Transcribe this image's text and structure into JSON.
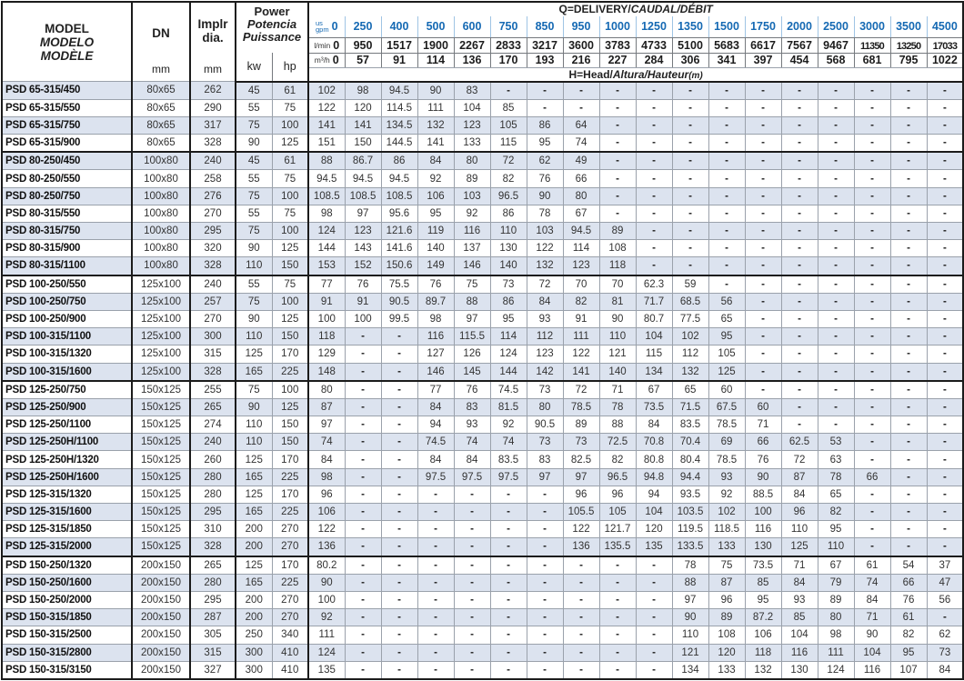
{
  "header": {
    "model": {
      "line1": "MODEL",
      "line2": "MODELO",
      "line3": "MODÈLE"
    },
    "dn": {
      "label": "DN",
      "unit": "mm"
    },
    "impeller": {
      "line1": "Implr",
      "line2": "dia.",
      "unit": "mm"
    },
    "power": {
      "line1": "Power",
      "line2": "Potencia",
      "line3": "Puissance",
      "kw": "kw",
      "hp": "hp"
    },
    "q_title": {
      "part1": "Q=DELIVERY/",
      "part2": "CAUDAL/DÉBIT"
    },
    "head_title": {
      "part1": "H=Head/",
      "part2": "Altura/Hauteur",
      "part3": "(m)"
    },
    "flow": {
      "gpm_label_top": "us",
      "gpm_label_bottom": "gpm",
      "lmin_label": "l/min",
      "m3h_label": "m³/h",
      "gpm": [
        "0",
        "250",
        "400",
        "500",
        "600",
        "750",
        "850",
        "950",
        "1000",
        "1250",
        "1350",
        "1500",
        "1750",
        "2000",
        "2500",
        "3000",
        "3500",
        "4500"
      ],
      "lmin": [
        "0",
        "950",
        "1517",
        "1900",
        "2267",
        "2833",
        "3217",
        "3600",
        "3783",
        "4733",
        "5100",
        "5683",
        "6617",
        "7567",
        "9467",
        "11350",
        "13250",
        "17033"
      ],
      "m3h": [
        "0",
        "57",
        "91",
        "114",
        "136",
        "170",
        "193",
        "216",
        "227",
        "284",
        "306",
        "341",
        "397",
        "454",
        "568",
        "681",
        "795",
        "1022"
      ]
    }
  },
  "colors": {
    "accent_blue": "#1569b3",
    "alt_row": "#dce3ef"
  },
  "rows": [
    {
      "model": "PSD 65-315/450",
      "dn": "80x65",
      "dia": "262",
      "kw": "45",
      "hp": "61",
      "h": [
        "102",
        "98",
        "94.5",
        "90",
        "83",
        "-",
        "-",
        "-",
        "-",
        "-",
        "-",
        "-",
        "-",
        "-",
        "-",
        "-",
        "-",
        "-"
      ]
    },
    {
      "model": "PSD 65-315/550",
      "dn": "80x65",
      "dia": "290",
      "kw": "55",
      "hp": "75",
      "h": [
        "122",
        "120",
        "114.5",
        "111",
        "104",
        "85",
        "-",
        "-",
        "-",
        "-",
        "-",
        "-",
        "-",
        "-",
        "-",
        "-",
        "-",
        "-"
      ]
    },
    {
      "model": "PSD 65-315/750",
      "dn": "80x65",
      "dia": "317",
      "kw": "75",
      "hp": "100",
      "h": [
        "141",
        "141",
        "134.5",
        "132",
        "123",
        "105",
        "86",
        "64",
        "-",
        "-",
        "-",
        "-",
        "-",
        "-",
        "-",
        "-",
        "-",
        "-"
      ]
    },
    {
      "model": "PSD 65-315/900",
      "dn": "80x65",
      "dia": "328",
      "kw": "90",
      "hp": "125",
      "h": [
        "151",
        "150",
        "144.5",
        "141",
        "133",
        "115",
        "95",
        "74",
        "-",
        "-",
        "-",
        "-",
        "-",
        "-",
        "-",
        "-",
        "-",
        "-"
      ]
    },
    {
      "model": "PSD 80-250/450",
      "dn": "100x80",
      "dia": "240",
      "kw": "45",
      "hp": "61",
      "h": [
        "88",
        "86.7",
        "86",
        "84",
        "80",
        "72",
        "62",
        "49",
        "-",
        "-",
        "-",
        "-",
        "-",
        "-",
        "-",
        "-",
        "-",
        "-"
      ]
    },
    {
      "model": "PSD 80-250/550",
      "dn": "100x80",
      "dia": "258",
      "kw": "55",
      "hp": "75",
      "h": [
        "94.5",
        "94.5",
        "94.5",
        "92",
        "89",
        "82",
        "76",
        "66",
        "-",
        "-",
        "-",
        "-",
        "-",
        "-",
        "-",
        "-",
        "-",
        "-"
      ]
    },
    {
      "model": "PSD 80-250/750",
      "dn": "100x80",
      "dia": "276",
      "kw": "75",
      "hp": "100",
      "h": [
        "108.5",
        "108.5",
        "108.5",
        "106",
        "103",
        "96.5",
        "90",
        "80",
        "-",
        "-",
        "-",
        "-",
        "-",
        "-",
        "-",
        "-",
        "-",
        "-"
      ]
    },
    {
      "model": "PSD 80-315/550",
      "dn": "100x80",
      "dia": "270",
      "kw": "55",
      "hp": "75",
      "h": [
        "98",
        "97",
        "95.6",
        "95",
        "92",
        "86",
        "78",
        "67",
        "-",
        "-",
        "-",
        "-",
        "-",
        "-",
        "-",
        "-",
        "-",
        "-"
      ]
    },
    {
      "model": "PSD 80-315/750",
      "dn": "100x80",
      "dia": "295",
      "kw": "75",
      "hp": "100",
      "h": [
        "124",
        "123",
        "121.6",
        "119",
        "116",
        "110",
        "103",
        "94.5",
        "89",
        "-",
        "-",
        "-",
        "-",
        "-",
        "-",
        "-",
        "-",
        "-"
      ]
    },
    {
      "model": "PSD 80-315/900",
      "dn": "100x80",
      "dia": "320",
      "kw": "90",
      "hp": "125",
      "h": [
        "144",
        "143",
        "141.6",
        "140",
        "137",
        "130",
        "122",
        "114",
        "108",
        "-",
        "-",
        "-",
        "-",
        "-",
        "-",
        "-",
        "-",
        "-"
      ]
    },
    {
      "model": "PSD 80-315/1100",
      "dn": "100x80",
      "dia": "328",
      "kw": "110",
      "hp": "150",
      "h": [
        "153",
        "152",
        "150.6",
        "149",
        "146",
        "140",
        "132",
        "123",
        "118",
        "-",
        "-",
        "-",
        "-",
        "-",
        "-",
        "-",
        "-",
        "-"
      ]
    },
    {
      "model": "PSD 100-250/550",
      "dn": "125x100",
      "dia": "240",
      "kw": "55",
      "hp": "75",
      "h": [
        "77",
        "76",
        "75.5",
        "76",
        "75",
        "73",
        "72",
        "70",
        "70",
        "62.3",
        "59",
        "-",
        "-",
        "-",
        "-",
        "-",
        "-",
        "-"
      ]
    },
    {
      "model": "PSD 100-250/750",
      "dn": "125x100",
      "dia": "257",
      "kw": "75",
      "hp": "100",
      "h": [
        "91",
        "91",
        "90.5",
        "89.7",
        "88",
        "86",
        "84",
        "82",
        "81",
        "71.7",
        "68.5",
        "56",
        "-",
        "-",
        "-",
        "-",
        "-",
        "-"
      ]
    },
    {
      "model": "PSD 100-250/900",
      "dn": "125x100",
      "dia": "270",
      "kw": "90",
      "hp": "125",
      "h": [
        "100",
        "100",
        "99.5",
        "98",
        "97",
        "95",
        "93",
        "91",
        "90",
        "80.7",
        "77.5",
        "65",
        "-",
        "-",
        "-",
        "-",
        "-",
        "-"
      ]
    },
    {
      "model": "PSD 100-315/1100",
      "dn": "125x100",
      "dia": "300",
      "kw": "110",
      "hp": "150",
      "h": [
        "118",
        "-",
        "-",
        "116",
        "115.5",
        "114",
        "112",
        "111",
        "110",
        "104",
        "102",
        "95",
        "-",
        "-",
        "-",
        "-",
        "-",
        "-"
      ]
    },
    {
      "model": "PSD 100-315/1320",
      "dn": "125x100",
      "dia": "315",
      "kw": "125",
      "hp": "170",
      "h": [
        "129",
        "-",
        "-",
        "127",
        "126",
        "124",
        "123",
        "122",
        "121",
        "115",
        "112",
        "105",
        "-",
        "-",
        "-",
        "-",
        "-",
        "-"
      ]
    },
    {
      "model": "PSD 100-315/1600",
      "dn": "125x100",
      "dia": "328",
      "kw": "165",
      "hp": "225",
      "h": [
        "148",
        "-",
        "-",
        "146",
        "145",
        "144",
        "142",
        "141",
        "140",
        "134",
        "132",
        "125",
        "-",
        "-",
        "-",
        "-",
        "-",
        "-"
      ]
    },
    {
      "model": "PSD 125-250/750",
      "dn": "150x125",
      "dia": "255",
      "kw": "75",
      "hp": "100",
      "h": [
        "80",
        "-",
        "-",
        "77",
        "76",
        "74.5",
        "73",
        "72",
        "71",
        "67",
        "65",
        "60",
        "-",
        "-",
        "-",
        "-",
        "-",
        "-"
      ]
    },
    {
      "model": "PSD 125-250/900",
      "dn": "150x125",
      "dia": "265",
      "kw": "90",
      "hp": "125",
      "h": [
        "87",
        "-",
        "-",
        "84",
        "83",
        "81.5",
        "80",
        "78.5",
        "78",
        "73.5",
        "71.5",
        "67.5",
        "60",
        "-",
        "-",
        "-",
        "-",
        "-"
      ]
    },
    {
      "model": "PSD 125-250/1100",
      "dn": "150x125",
      "dia": "274",
      "kw": "110",
      "hp": "150",
      "h": [
        "97",
        "-",
        "-",
        "94",
        "93",
        "92",
        "90.5",
        "89",
        "88",
        "84",
        "83.5",
        "78.5",
        "71",
        "-",
        "-",
        "-",
        "-",
        "-"
      ]
    },
    {
      "model": "PSD 125-250H/1100",
      "dn": "150x125",
      "dia": "240",
      "kw": "110",
      "hp": "150",
      "h": [
        "74",
        "-",
        "-",
        "74.5",
        "74",
        "74",
        "73",
        "73",
        "72.5",
        "70.8",
        "70.4",
        "69",
        "66",
        "62.5",
        "53",
        "-",
        "-",
        "-"
      ]
    },
    {
      "model": "PSD 125-250H/1320",
      "dn": "150x125",
      "dia": "260",
      "kw": "125",
      "hp": "170",
      "h": [
        "84",
        "-",
        "-",
        "84",
        "84",
        "83.5",
        "83",
        "82.5",
        "82",
        "80.8",
        "80.4",
        "78.5",
        "76",
        "72",
        "63",
        "-",
        "-",
        "-"
      ]
    },
    {
      "model": "PSD 125-250H/1600",
      "dn": "150x125",
      "dia": "280",
      "kw": "165",
      "hp": "225",
      "h": [
        "98",
        "-",
        "-",
        "97.5",
        "97.5",
        "97.5",
        "97",
        "97",
        "96.5",
        "94.8",
        "94.4",
        "93",
        "90",
        "87",
        "78",
        "66",
        "-",
        "-"
      ]
    },
    {
      "model": "PSD 125-315/1320",
      "dn": "150x125",
      "dia": "280",
      "kw": "125",
      "hp": "170",
      "h": [
        "96",
        "-",
        "-",
        "-",
        "-",
        "-",
        "-",
        "96",
        "96",
        "94",
        "93.5",
        "92",
        "88.5",
        "84",
        "65",
        "-",
        "-",
        "-"
      ]
    },
    {
      "model": "PSD 125-315/1600",
      "dn": "150x125",
      "dia": "295",
      "kw": "165",
      "hp": "225",
      "h": [
        "106",
        "-",
        "-",
        "-",
        "-",
        "-",
        "-",
        "105.5",
        "105",
        "104",
        "103.5",
        "102",
        "100",
        "96",
        "82",
        "-",
        "-",
        "-"
      ]
    },
    {
      "model": "PSD 125-315/1850",
      "dn": "150x125",
      "dia": "310",
      "kw": "200",
      "hp": "270",
      "h": [
        "122",
        "-",
        "-",
        "-",
        "-",
        "-",
        "-",
        "122",
        "121.7",
        "120",
        "119.5",
        "118.5",
        "116",
        "110",
        "95",
        "-",
        "-",
        "-"
      ]
    },
    {
      "model": "PSD 125-315/2000",
      "dn": "150x125",
      "dia": "328",
      "kw": "200",
      "hp": "270",
      "h": [
        "136",
        "-",
        "-",
        "-",
        "-",
        "-",
        "-",
        "136",
        "135.5",
        "135",
        "133.5",
        "133",
        "130",
        "125",
        "110",
        "-",
        "-",
        "-"
      ]
    },
    {
      "model": "PSD 150-250/1320",
      "dn": "200x150",
      "dia": "265",
      "kw": "125",
      "hp": "170",
      "h": [
        "80.2",
        "-",
        "-",
        "-",
        "-",
        "-",
        "-",
        "-",
        "-",
        "-",
        "78",
        "75",
        "73.5",
        "71",
        "67",
        "61",
        "54",
        "37"
      ]
    },
    {
      "model": "PSD 150-250/1600",
      "dn": "200x150",
      "dia": "280",
      "kw": "165",
      "hp": "225",
      "h": [
        "90",
        "-",
        "-",
        "-",
        "-",
        "-",
        "-",
        "-",
        "-",
        "-",
        "88",
        "87",
        "85",
        "84",
        "79",
        "74",
        "66",
        "47"
      ]
    },
    {
      "model": "PSD 150-250/2000",
      "dn": "200x150",
      "dia": "295",
      "kw": "200",
      "hp": "270",
      "h": [
        "100",
        "-",
        "-",
        "-",
        "-",
        "-",
        "-",
        "-",
        "-",
        "-",
        "97",
        "96",
        "95",
        "93",
        "89",
        "84",
        "76",
        "56"
      ]
    },
    {
      "model": "PSD 150-315/1850",
      "dn": "200x150",
      "dia": "287",
      "kw": "200",
      "hp": "270",
      "h": [
        "92",
        "-",
        "-",
        "-",
        "-",
        "-",
        "-",
        "-",
        "-",
        "-",
        "90",
        "89",
        "87.2",
        "85",
        "80",
        "71",
        "61",
        "-"
      ]
    },
    {
      "model": "PSD 150-315/2500",
      "dn": "200x150",
      "dia": "305",
      "kw": "250",
      "hp": "340",
      "h": [
        "111",
        "-",
        "-",
        "-",
        "-",
        "-",
        "-",
        "-",
        "-",
        "-",
        "110",
        "108",
        "106",
        "104",
        "98",
        "90",
        "82",
        "62"
      ]
    },
    {
      "model": "PSD 150-315/2800",
      "dn": "200x150",
      "dia": "315",
      "kw": "300",
      "hp": "410",
      "h": [
        "124",
        "-",
        "-",
        "-",
        "-",
        "-",
        "-",
        "-",
        "-",
        "-",
        "121",
        "120",
        "118",
        "116",
        "111",
        "104",
        "95",
        "73"
      ]
    },
    {
      "model": "PSD 150-315/3150",
      "dn": "200x150",
      "dia": "327",
      "kw": "300",
      "hp": "410",
      "h": [
        "135",
        "-",
        "-",
        "-",
        "-",
        "-",
        "-",
        "-",
        "-",
        "-",
        "134",
        "133",
        "132",
        "130",
        "124",
        "116",
        "107",
        "84"
      ]
    }
  ]
}
